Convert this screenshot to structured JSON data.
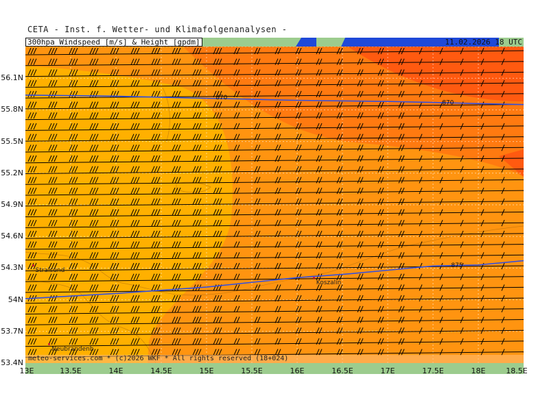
{
  "title": "CETA - Inst. f. Wetter- und Klimafolgenanalysen -",
  "header": {
    "label": "300hpa Windspeed [m/s] & Height [gpdm]",
    "datetime": "11.02.2026 18 UTC"
  },
  "copyright": "meteo-services.com * (c)2026 WKF * All rights reserved (18+024)",
  "lat_labels": [
    "56.1N",
    "55.8N",
    "55.5N",
    "55.2N",
    "54.9N",
    "54.6N",
    "54.3N",
    "54N",
    "53.7N",
    "53.4N"
  ],
  "lon_labels": [
    "13E",
    "13.5E",
    "14E",
    "14.5E",
    "15E",
    "15.5E",
    "16E",
    "16.5E",
    "17E",
    "17.5E",
    "18E",
    "18.5E"
  ],
  "map": {
    "lat_range": [
      53.4,
      56.4
    ],
    "lon_range": [
      13.0,
      18.5
    ],
    "fill_colors": {
      "yellow_orange": "#ffb000",
      "orange": "#ff9410",
      "dark_orange": "#ff7a10",
      "red_orange": "#ff5a10"
    },
    "contour_color": "#3350e0",
    "contours": [
      {
        "label": "870",
        "points": [
          [
            13.0,
            55.94
          ],
          [
            14.0,
            55.93
          ],
          [
            15.0,
            55.91
          ],
          [
            16.0,
            55.89
          ],
          [
            17.0,
            55.88
          ],
          [
            17.5,
            55.87
          ],
          [
            18.0,
            55.86
          ],
          [
            18.5,
            55.85
          ]
        ],
        "label_at": [
          [
            15.1,
            55.92
          ],
          [
            17.6,
            55.87
          ]
        ]
      },
      {
        "label": "875",
        "points": [
          [
            13.0,
            54.01
          ],
          [
            14.0,
            54.06
          ],
          [
            15.0,
            54.12
          ],
          [
            16.0,
            54.21
          ],
          [
            16.5,
            54.24
          ],
          [
            17.0,
            54.28
          ],
          [
            17.5,
            54.32
          ],
          [
            18.0,
            54.33
          ],
          [
            18.5,
            54.37
          ]
        ],
        "label_at": [
          [
            17.7,
            54.33
          ]
        ]
      }
    ],
    "cities": [
      {
        "name": "Stralsund",
        "lon": 13.08,
        "lat": 54.31
      },
      {
        "name": "Koszalin",
        "lon": 16.18,
        "lat": 54.19
      },
      {
        "name": "Neubrandenb.",
        "lon": 13.26,
        "lat": 53.56
      }
    ],
    "wind_direction": "W"
  }
}
